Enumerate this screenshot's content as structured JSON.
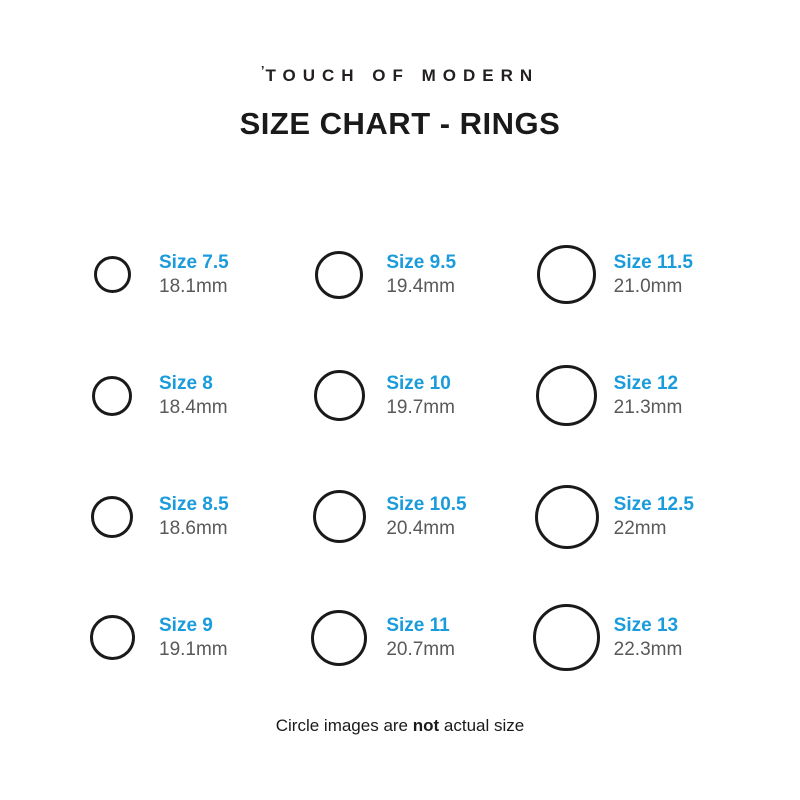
{
  "header": {
    "logo_mark": "’",
    "logo_text": "TOUCH OF MODERN",
    "title": "SIZE CHART - RINGS"
  },
  "colors": {
    "accent_blue": "#1A9BDC",
    "label_gray": "#58595B",
    "ring_outline": "#1A1A1A",
    "background": "#FFFFFF"
  },
  "rings": {
    "columns": [
      {
        "items": [
          {
            "size": "Size 7.5",
            "diameter": "18.1mm"
          },
          {
            "size": "Size 8",
            "diameter": "18.4mm"
          },
          {
            "size": "Size 8.5",
            "diameter": "18.6mm"
          },
          {
            "size": "Size 9",
            "diameter": "19.1mm"
          }
        ]
      },
      {
        "items": [
          {
            "size": "Size 9.5",
            "diameter": "19.4mm"
          },
          {
            "size": "Size 10",
            "diameter": "19.7mm"
          },
          {
            "size": "Size 10.5",
            "diameter": "20.4mm"
          },
          {
            "size": "Size 11",
            "diameter": "20.7mm"
          }
        ]
      },
      {
        "items": [
          {
            "size": "Size 11.5",
            "diameter": "21.0mm"
          },
          {
            "size": "Size 12",
            "diameter": "21.3mm"
          },
          {
            "size": "Size 12.5",
            "diameter": "22mm"
          },
          {
            "size": "Size 13",
            "diameter": "22.3mm"
          }
        ]
      }
    ]
  },
  "footer": {
    "prefix": "Circle images are ",
    "bold_word": "not",
    "suffix": " actual size"
  }
}
